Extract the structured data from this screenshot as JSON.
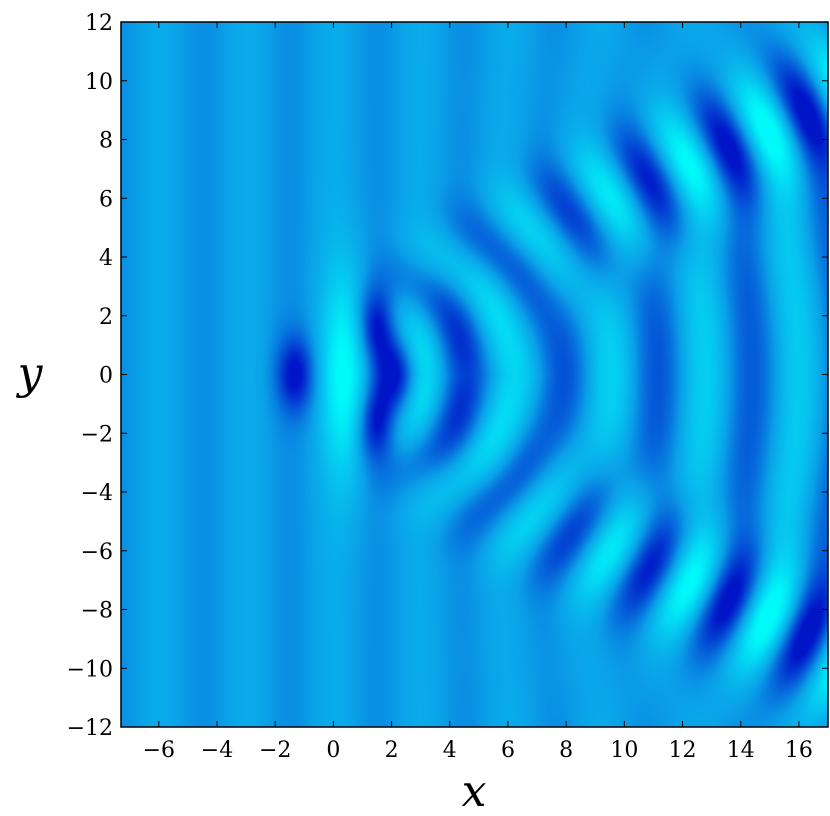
{
  "chart_data": {
    "type": "heatmap",
    "title": "",
    "xlabel": "x",
    "ylabel": "y",
    "xlim": [
      -7.3,
      17
    ],
    "ylim": [
      -12,
      12
    ],
    "xticks": [
      -6,
      -4,
      -2,
      0,
      2,
      4,
      6,
      8,
      10,
      12,
      14,
      16
    ],
    "yticks": [
      -12,
      -10,
      -8,
      -6,
      -4,
      -2,
      0,
      2,
      4,
      6,
      8,
      10,
      12
    ],
    "x_tick_labels": [
      "−6",
      "−4",
      "−2",
      "0",
      "2",
      "4",
      "6",
      "8",
      "10",
      "12",
      "14",
      "16"
    ],
    "y_tick_labels": [
      "−12",
      "−10",
      "−8",
      "−6",
      "−4",
      "−2",
      "0",
      "2",
      "4",
      "6",
      "8",
      "10",
      "12"
    ],
    "grid": false,
    "legend": "none",
    "colormap": {
      "low": "#0014c8",
      "mid": "#0aa0e8",
      "high": "#00fafa"
    },
    "features": [
      {
        "kind": "min",
        "x": -1.3,
        "y": 0,
        "value": -1.0
      },
      {
        "kind": "max",
        "x": 0.4,
        "y": 0,
        "value": 1.0
      },
      {
        "kind": "min",
        "x": 1.5,
        "y": 1.8,
        "value": -1.0
      },
      {
        "kind": "min",
        "x": 1.5,
        "y": -1.8,
        "value": -1.0
      },
      {
        "kind": "min",
        "x": 2.3,
        "y": 0,
        "value": -0.9
      }
    ]
  }
}
